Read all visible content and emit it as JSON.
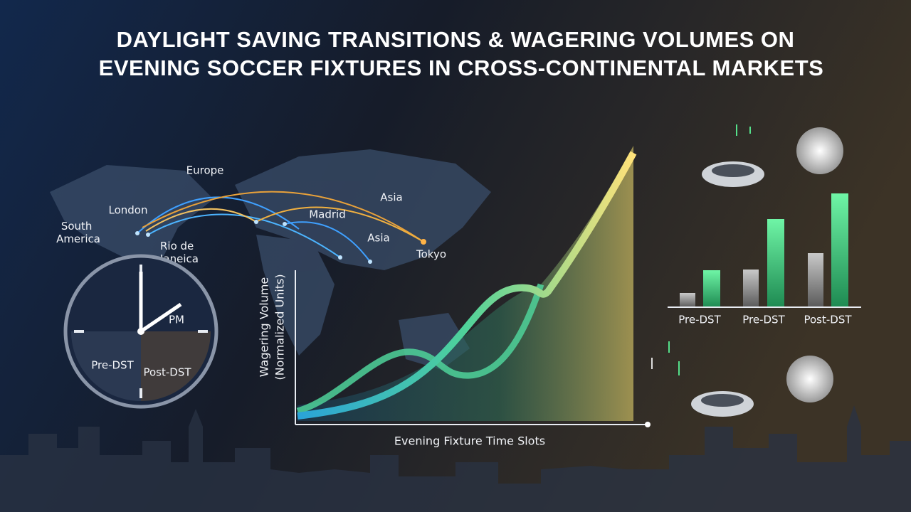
{
  "title": {
    "lines": [
      "DAYLIGHT SAVING TRANSITIONS & WAGERING VOLUMES ON",
      "EVENING SOCCER FIXTURES IN CROSS-CONTINENTAL MARKETS"
    ]
  },
  "map": {
    "labels": [
      "Europe",
      "London",
      "South America",
      "Rio de Janeica",
      "Madrid",
      "Asia",
      "Asia",
      "Tokyo"
    ]
  },
  "clock": {
    "labels": [
      "PM",
      "Pre-DST",
      "Post-DST"
    ]
  },
  "curve_chart": {
    "y_label": [
      "Wagering Volume",
      "(Normalized Units)"
    ],
    "x_label": "Evening Fixture Time Slots"
  },
  "bar_panel": {
    "labels": [
      "Pre-DST",
      "Pre-DST",
      "Post-DST"
    ]
  }
}
